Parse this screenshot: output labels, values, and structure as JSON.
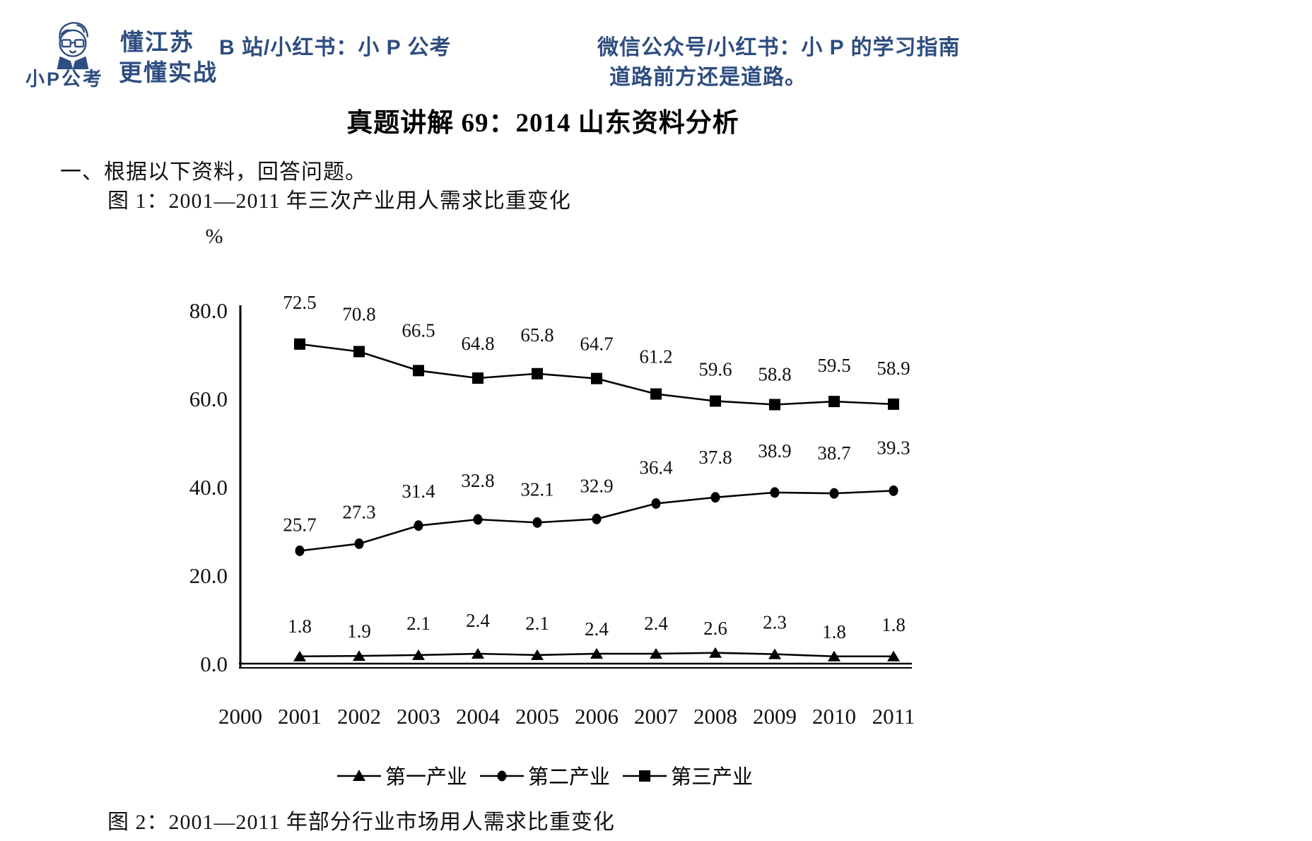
{
  "header": {
    "logo_text": "小P公考",
    "avatar_icon": "cartoon-student-avatar",
    "slogan_line1": "懂江苏",
    "slogan_line2": "更懂实战",
    "bilibili_line": "B 站/小红书：小 P 公考",
    "wechat_line1": "微信公众号/小红书：小 P 的学习指南",
    "wechat_line2": "道路前方还是道路。",
    "accent_color": "#2e4d80"
  },
  "document": {
    "title": "真题讲解 69：2014 山东资料分析",
    "instruction": "一、根据以下资料，回答问题。",
    "figure1_caption": "图 1：2001—2011 年三次产业用人需求比重变化",
    "figure2_caption": "图 2：2001—2011 年部分行业市场用人需求比重变化"
  },
  "chart_data": {
    "type": "line",
    "unit_label": "%",
    "color": "#000000",
    "grid": false,
    "legend_position": "bottom",
    "ylim": [
      0,
      80
    ],
    "y_ticks": [
      "80.0",
      "60.0",
      "40.0",
      "20.0",
      "0.0"
    ],
    "x_axis_ticks": [
      "2000",
      "2001",
      "2002",
      "2003",
      "2004",
      "2005",
      "2006",
      "2007",
      "2008",
      "2009",
      "2010",
      "2011"
    ],
    "x": [
      2001,
      2002,
      2003,
      2004,
      2005,
      2006,
      2007,
      2008,
      2009,
      2010,
      2011
    ],
    "series": [
      {
        "name": "第一产业",
        "marker": "triangle",
        "values": [
          1.8,
          1.9,
          2.1,
          2.4,
          2.1,
          2.4,
          2.4,
          2.6,
          2.3,
          1.8,
          1.8
        ]
      },
      {
        "name": "第二产业",
        "marker": "circle",
        "values": [
          25.7,
          27.3,
          31.4,
          32.8,
          32.1,
          32.9,
          36.4,
          37.8,
          38.9,
          38.7,
          39.3
        ]
      },
      {
        "name": "第三产业",
        "marker": "square",
        "values": [
          72.5,
          70.8,
          66.5,
          64.8,
          65.8,
          64.7,
          61.2,
          59.6,
          58.8,
          59.5,
          58.9
        ]
      }
    ]
  }
}
